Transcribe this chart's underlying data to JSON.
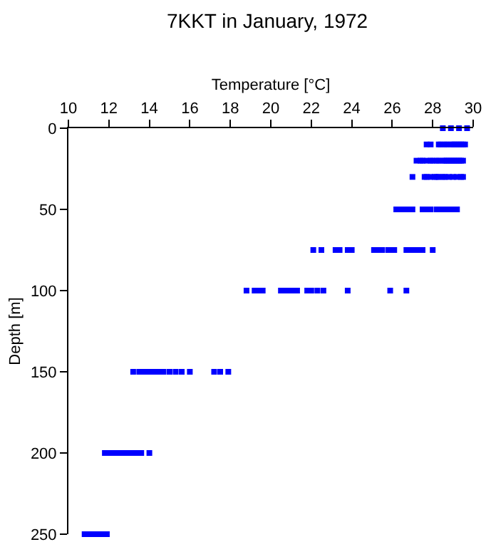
{
  "chart_data": {
    "type": "scatter",
    "title": "7KKT in January, 1972",
    "xlabel": "Temperature [°C]",
    "ylabel": "Depth [m]",
    "x": [
      28.5,
      28.9,
      29.3,
      29.7,
      27.7,
      27.9,
      28.3,
      28.4,
      28.6,
      28.7,
      28.9,
      29.0,
      29.1,
      29.2,
      29.3,
      29.4,
      29.5,
      29.6,
      27.2,
      27.4,
      27.5,
      27.7,
      27.9,
      28.0,
      28.2,
      28.3,
      28.5,
      28.6,
      28.7,
      28.8,
      28.9,
      29.0,
      29.1,
      29.2,
      29.3,
      29.4,
      29.5,
      27.0,
      27.6,
      27.7,
      27.9,
      28.1,
      28.2,
      28.3,
      28.5,
      28.6,
      28.8,
      29.0,
      29.2,
      29.4,
      29.5,
      26.2,
      26.3,
      26.5,
      26.6,
      26.8,
      27.0,
      27.5,
      27.6,
      27.8,
      27.9,
      28.2,
      28.4,
      28.6,
      28.8,
      29.0,
      29.2,
      22.1,
      22.5,
      23.2,
      23.4,
      23.8,
      24.0,
      25.1,
      25.3,
      25.5,
      25.8,
      26.0,
      26.1,
      26.7,
      26.9,
      27.1,
      27.3,
      27.5,
      28.0,
      18.8,
      19.2,
      19.4,
      19.6,
      20.5,
      20.7,
      20.9,
      21.1,
      21.3,
      21.8,
      22.0,
      22.3,
      22.6,
      23.8,
      25.9,
      26.7,
      13.2,
      13.5,
      13.7,
      13.9,
      14.1,
      14.3,
      14.5,
      14.7,
      15.0,
      15.3,
      15.6,
      16.0,
      17.2,
      17.5,
      17.9,
      11.8,
      12.0,
      12.2,
      12.4,
      12.6,
      12.8,
      13.0,
      13.2,
      13.4,
      13.6,
      14.0,
      10.8,
      11.0,
      11.2,
      11.4,
      11.6,
      11.8,
      11.9
    ],
    "values": [
      0,
      0,
      0,
      0,
      10,
      10,
      10,
      10,
      10,
      10,
      10,
      10,
      10,
      10,
      10,
      10,
      10,
      10,
      20,
      20,
      20,
      20,
      20,
      20,
      20,
      20,
      20,
      20,
      20,
      20,
      20,
      20,
      20,
      20,
      20,
      20,
      20,
      30,
      30,
      30,
      30,
      30,
      30,
      30,
      30,
      30,
      30,
      30,
      30,
      30,
      30,
      50,
      50,
      50,
      50,
      50,
      50,
      50,
      50,
      50,
      50,
      50,
      50,
      50,
      50,
      50,
      50,
      75,
      75,
      75,
      75,
      75,
      75,
      75,
      75,
      75,
      75,
      75,
      75,
      75,
      75,
      75,
      75,
      75,
      75,
      100,
      100,
      100,
      100,
      100,
      100,
      100,
      100,
      100,
      100,
      100,
      100,
      100,
      100,
      100,
      100,
      150,
      150,
      150,
      150,
      150,
      150,
      150,
      150,
      150,
      150,
      150,
      150,
      150,
      150,
      150,
      200,
      200,
      200,
      200,
      200,
      200,
      200,
      200,
      200,
      200,
      200,
      250,
      250,
      250,
      250,
      250,
      250,
      250
    ],
    "color": "#0000ff",
    "marker": "square",
    "grid": false,
    "legend": false,
    "xlim": [
      10,
      30
    ],
    "xticks": [
      10,
      12,
      14,
      16,
      18,
      20,
      22,
      24,
      26,
      28,
      30
    ],
    "ylim": [
      250,
      0
    ],
    "yticks": [
      0,
      50,
      100,
      150,
      200,
      250
    ]
  }
}
